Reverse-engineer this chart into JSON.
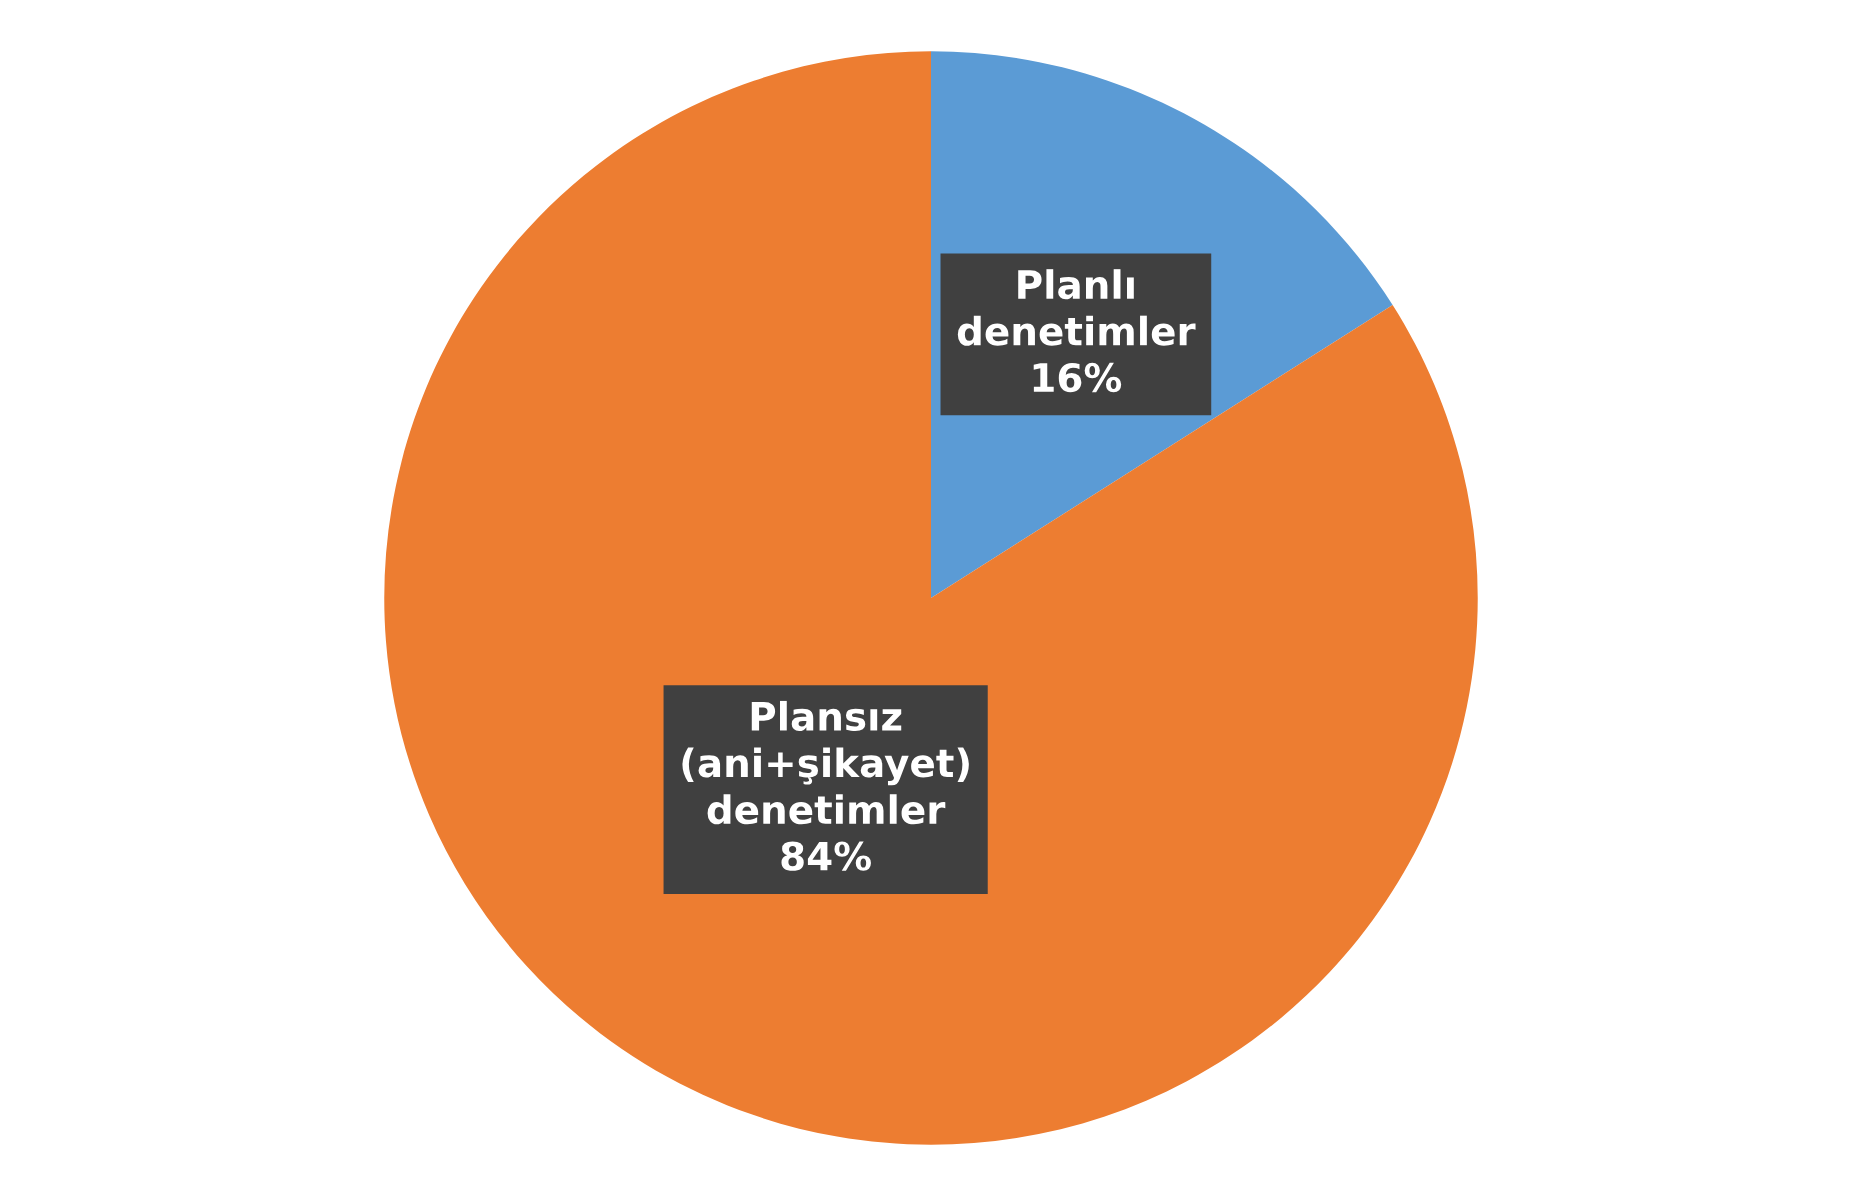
{
  "chart_data": {
    "type": "pie",
    "categories": [
      "Planlı denetimler",
      "Plansız (ani+şikayet) denetimler"
    ],
    "values": [
      16,
      84
    ],
    "colors": [
      "#5b9bd5",
      "#ed7d31"
    ],
    "value_labels": [
      "16%",
      "84%"
    ]
  }
}
